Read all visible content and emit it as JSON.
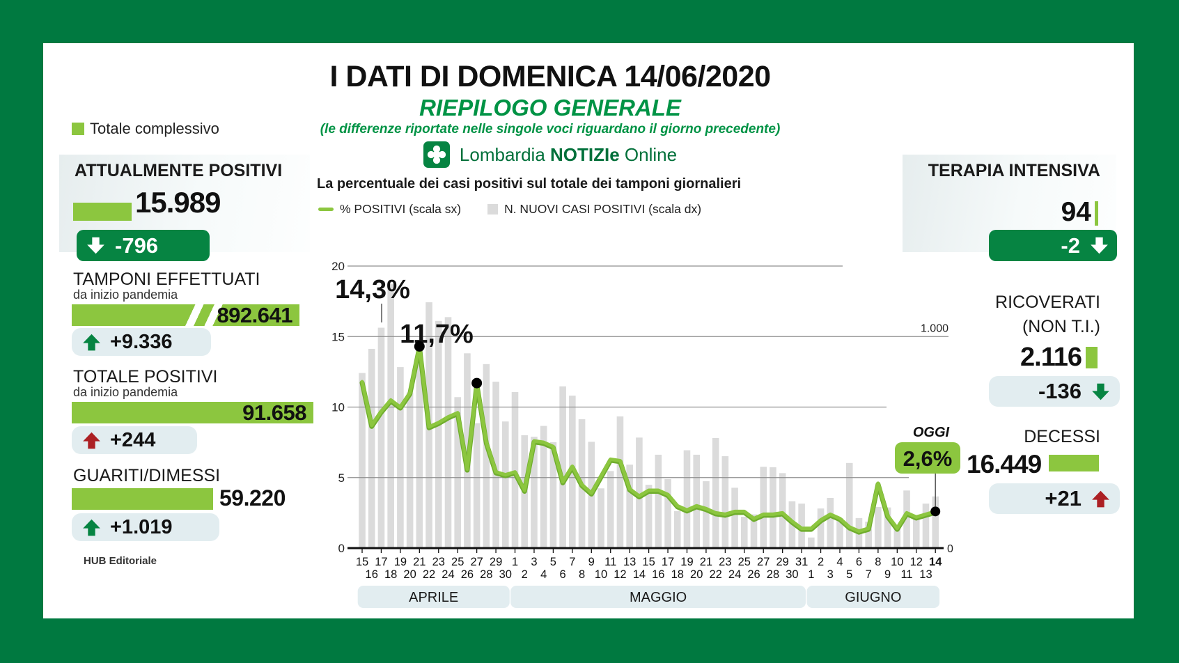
{
  "header": {
    "title": "I DATI DI DOMENICA 14/06/2020",
    "subtitle": "RIEPILOGO GENERALE",
    "note": "(le differenze riportate nelle singole voci riguardano il giorno precedente)",
    "brand": {
      "name": "Lombardia",
      "bold": "NOTIZIe",
      "suffix": "Online"
    }
  },
  "legend_total": {
    "label": "Totale complessivo",
    "color": "#8CC63F"
  },
  "stats": {
    "attualmente_positivi": {
      "title": "ATTUALMENTE POSITIVI",
      "value": "15.989",
      "delta": "-796",
      "trend": "down"
    },
    "tamponi_effettuati": {
      "title": "TAMPONI EFFETTUATI",
      "subtitle": "da inizio pandemia",
      "value": "892.641",
      "delta": "+9.336",
      "trend": "up"
    },
    "totale_positivi": {
      "title": "TOTALE POSITIVI",
      "subtitle": "da inizio pandemia",
      "value": "91.658",
      "delta": "+244",
      "trend": "up"
    },
    "guariti_dimessi": {
      "title": "GUARITI/DIMESSI",
      "value": "59.220",
      "delta": "+1.019",
      "trend": "up"
    },
    "terapia_intensiva": {
      "title": "TERAPIA INTENSIVA",
      "value": "94",
      "delta": "-2",
      "trend": "down"
    },
    "ricoverati": {
      "title": "RICOVERATI",
      "title2": "(NON T.I.)",
      "value": "2.116",
      "delta": "-136",
      "trend": "down"
    },
    "decessi": {
      "title": "DECESSI",
      "value": "16.449",
      "delta": "+21",
      "trend": "up"
    }
  },
  "footer": {
    "credit": "HUB Editoriale"
  },
  "colors": {
    "frame": "#007940",
    "accent": "#8CC63F",
    "dark_green": "#068442",
    "title_green": "#009345",
    "red": "#AC2024",
    "pill_bg": "#E2EDF0",
    "bar_gray": "#DBDBDB"
  },
  "chart_data": {
    "type": "line+bar",
    "title": "La percentuale dei casi positivi sul totale dei tamponi giornalieri",
    "legend": [
      {
        "label": "% POSITIVI (scala sx)",
        "swatch": "line",
        "color": "#8CC63F"
      },
      {
        "label": "N. NUOVI CASI POSITIVI (scala dx)",
        "swatch": "square",
        "color": "#DBDBDB"
      }
    ],
    "left_axis": {
      "ticks": [
        0,
        5,
        10,
        15,
        20
      ],
      "max": 20
    },
    "right_axis": {
      "gridline_label": "1.000",
      "gridline_value": 1000,
      "zero_label": "0"
    },
    "months": [
      {
        "label": "APRILE",
        "days": 16
      },
      {
        "label": "MAGGIO",
        "days": 31
      },
      {
        "label": "GIUGNO",
        "days": 14
      }
    ],
    "x_labels": [
      "15",
      "16",
      "17",
      "18",
      "19",
      "20",
      "21",
      "22",
      "23",
      "24",
      "25",
      "26",
      "27",
      "28",
      "29",
      "30",
      "1",
      "2",
      "3",
      "4",
      "5",
      "6",
      "7",
      "8",
      "9",
      "10",
      "11",
      "12",
      "13",
      "14",
      "15",
      "16",
      "17",
      "18",
      "19",
      "20",
      "21",
      "22",
      "23",
      "24",
      "25",
      "26",
      "27",
      "28",
      "29",
      "30",
      "31",
      "1",
      "2",
      "3",
      "4",
      "5",
      "6",
      "7",
      "8",
      "9",
      "10",
      "11",
      "12",
      "13",
      "14"
    ],
    "series": [
      {
        "name": "% POSITIVI (scala sx)",
        "type": "line",
        "axis": "left",
        "values": [
          11.8,
          8.7,
          9.7,
          10.5,
          10.0,
          11.0,
          14.3,
          8.6,
          8.9,
          9.3,
          9.6,
          5.6,
          11.7,
          7.5,
          5.4,
          5.2,
          5.4,
          4.1,
          7.6,
          7.5,
          7.2,
          4.7,
          5.8,
          4.5,
          3.9,
          5.1,
          6.3,
          6.2,
          4.2,
          3.7,
          4.1,
          4.1,
          3.8,
          3.0,
          2.7,
          3.0,
          2.8,
          2.5,
          2.4,
          2.6,
          2.6,
          2.1,
          2.4,
          2.4,
          2.5,
          1.9,
          1.4,
          1.4,
          2.0,
          2.4,
          2.1,
          1.5,
          1.2,
          1.4,
          4.6,
          2.3,
          1.4,
          2.5,
          2.2,
          2.4,
          2.6
        ]
      },
      {
        "name": "N. NUOVI CASI POSITIVI (scala dx)",
        "type": "bar",
        "axis": "right",
        "values": [
          827,
          941,
          1041,
          1246,
          855,
          735,
          960,
          1161,
          1073,
          1091,
          713,
          920,
          590,
          869,
          786,
          598,
          737,
          533,
          526,
          577,
          500,
          764,
          720,
          609,
          502,
          282,
          364,
          622,
          394,
          522,
          299,
          441,
          326,
          175,
          462,
          441,
          316,
          520,
          434,
          285,
          148,
          159,
          384,
          382,
          354,
          221,
          210,
          50,
          187,
          237,
          142,
          402,
          142,
          125,
          194,
          192,
          99,
          272,
          157,
          210,
          244
        ]
      }
    ],
    "annotations": [
      {
        "label": "14,3%",
        "day_index": 6
      },
      {
        "label": "11,7%",
        "day_index": 12
      },
      {
        "tag": "OGGI",
        "label": "2,6%",
        "day_index": 60
      }
    ],
    "colors": {
      "line": "#8CC63F",
      "line_shadow": "#6FAD2D",
      "bar": "#DBDBDB",
      "band": "#E2EDF0",
      "accent": "#8CC63F"
    }
  }
}
